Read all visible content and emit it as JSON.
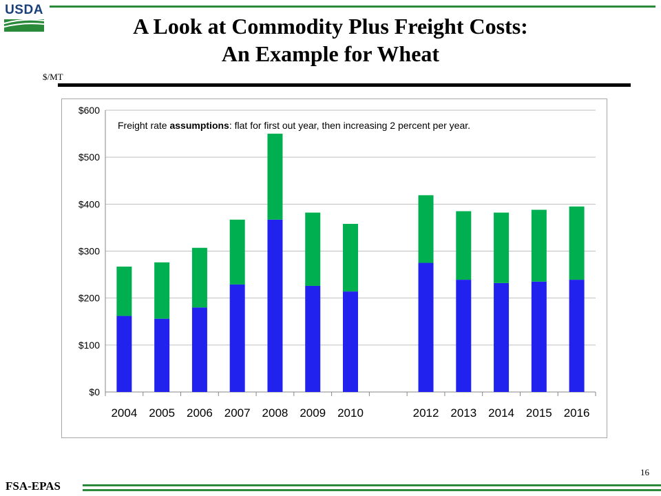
{
  "header": {
    "logo_text": "USDA",
    "title_line1": "A Look at Commodity Plus Freight Costs:",
    "title_line2": "An Example for Wheat",
    "unit_label": "$/MT"
  },
  "footer": {
    "org": "FSA-EPAS",
    "page_number": "16"
  },
  "colors": {
    "commodity": "#2222ee",
    "freight": "#00b050",
    "accent_green": "#2a8a3a",
    "gridline": "#bfbfbf"
  },
  "chart_data": {
    "type": "bar",
    "stacked": true,
    "categories": [
      "2004",
      "2005",
      "2006",
      "2007",
      "2008",
      "2009",
      "2010",
      "",
      "2012",
      "2013",
      "2014",
      "2015",
      "2016"
    ],
    "series": [
      {
        "values": [
          162,
          156,
          180,
          229,
          367,
          226,
          214,
          null,
          275,
          239,
          232,
          235,
          239
        ]
      },
      {
        "values": [
          105,
          120,
          127,
          138,
          183,
          156,
          144,
          null,
          144,
          146,
          150,
          153,
          156
        ]
      }
    ],
    "ylim": [
      0,
      600
    ],
    "yticks": [
      0,
      100,
      200,
      300,
      400,
      500,
      600
    ],
    "ytick_labels": [
      "$0",
      "$100",
      "$200",
      "$300",
      "$400",
      "$500",
      "$600"
    ],
    "xlabel": "",
    "ylabel": "",
    "grid": true,
    "legend": "none",
    "annotation": {
      "part1": "Freight  rate ",
      "part2": "assumptions",
      "part3": ": flat for first out year, then increasing 2 percent per year."
    }
  }
}
